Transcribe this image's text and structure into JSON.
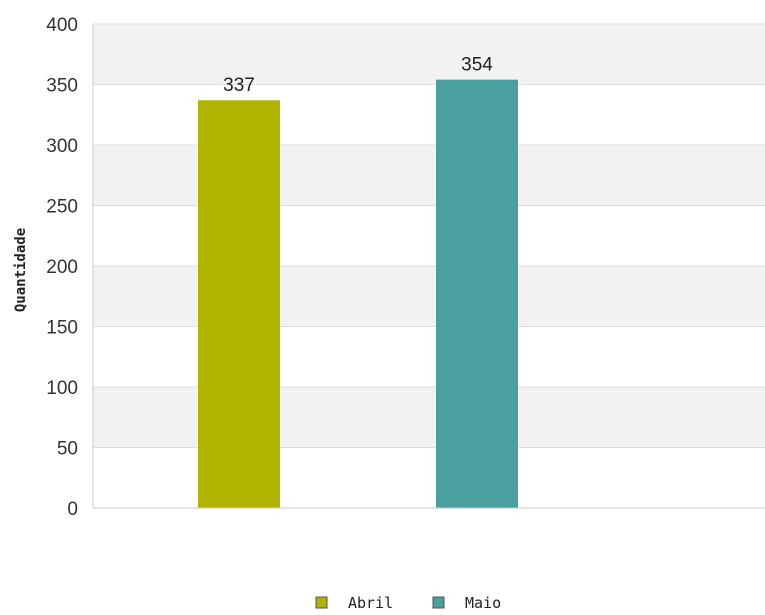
{
  "chart_data": {
    "type": "bar",
    "categories": [
      "Abril",
      "Maio"
    ],
    "values": [
      337,
      354
    ],
    "ylabel": "Quantidade",
    "xlabel": "",
    "ylim": [
      0,
      400
    ],
    "yticks": [
      0,
      50,
      100,
      150,
      200,
      250,
      300,
      350,
      400
    ],
    "grid": "horizontal",
    "legend": "bottom",
    "colors": [
      "#b0b400",
      "#4aa09f"
    ],
    "data_labels": [
      "337",
      "354"
    ]
  }
}
